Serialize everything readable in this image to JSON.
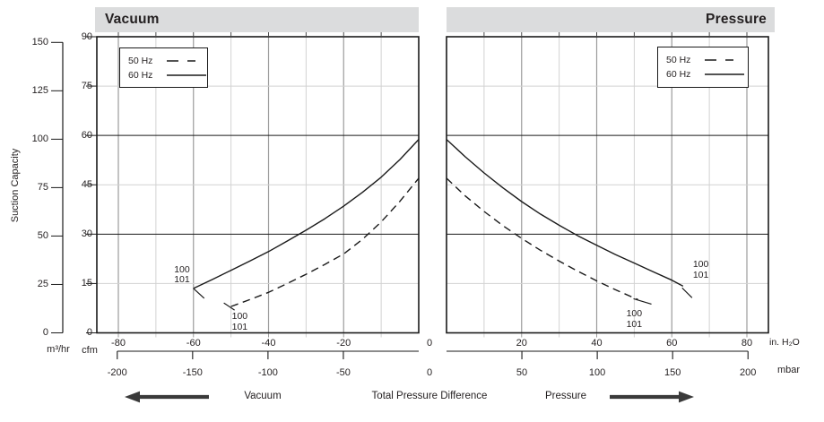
{
  "chart_data": {
    "type": "line",
    "title_left": "Vacuum",
    "title_right": "Pressure",
    "ylabel": "Suction Capacity",
    "y_axis_primary": {
      "unit": "m³/hr",
      "ticks": [
        0,
        25,
        50,
        75,
        100,
        125,
        150
      ],
      "max": 150
    },
    "y_axis_secondary": {
      "unit": "cfm",
      "ticks": [
        0,
        15,
        30,
        45,
        60,
        75,
        90
      ],
      "max": 90
    },
    "x_axis_inh2o": {
      "unit": "in. H₂O",
      "left_ticks": [
        -80,
        -60,
        -40,
        -20
      ],
      "right_ticks": [
        20,
        40,
        60,
        80
      ],
      "zero_label": "0",
      "grid_step": 10,
      "left_range": [
        -86,
        0
      ],
      "right_range": [
        0,
        86
      ]
    },
    "x_axis_mbar": {
      "unit": "mbar",
      "left_ticks": [
        -200,
        -150,
        -100,
        -50
      ],
      "right_ticks": [
        50,
        100,
        150,
        200
      ],
      "zero_label": "0",
      "inh2o_per_mbar": 0.40147
    },
    "legend": [
      {
        "label": "50 Hz",
        "style": "dashed"
      },
      {
        "label": "60 Hz",
        "style": "solid"
      }
    ],
    "panels": [
      {
        "name": "vacuum",
        "series": [
          {
            "name": "60 Hz",
            "style": "solid",
            "points_inh2o_cfm": [
              [
                -60,
                13.5
              ],
              [
                -55,
                16.2
              ],
              [
                -50,
                19
              ],
              [
                -45,
                21.8
              ],
              [
                -40,
                24.7
              ],
              [
                -35,
                27.9
              ],
              [
                -30,
                31.2
              ],
              [
                -25,
                34.7
              ],
              [
                -20,
                38.5
              ],
              [
                -15,
                42.7
              ],
              [
                -10,
                47.3
              ],
              [
                -5,
                52.7
              ],
              [
                0,
                58.8
              ]
            ]
          },
          {
            "name": "50 Hz",
            "style": "dashed",
            "points_inh2o_cfm": [
              [
                -50,
                8
              ],
              [
                -45,
                10.1
              ],
              [
                -40,
                12.3
              ],
              [
                -35,
                15
              ],
              [
                -30,
                17.8
              ],
              [
                -25,
                20.8
              ],
              [
                -20,
                24
              ],
              [
                -15,
                28.4
              ],
              [
                -10,
                33.7
              ],
              [
                -5,
                40
              ],
              [
                0,
                47
              ]
            ]
          }
        ]
      },
      {
        "name": "pressure",
        "series": [
          {
            "name": "60 Hz",
            "style": "solid",
            "points_inh2o_cfm": [
              [
                0,
                58.8
              ],
              [
                5,
                53.5
              ],
              [
                10,
                48.6
              ],
              [
                15,
                44.1
              ],
              [
                20,
                39.9
              ],
              [
                25,
                36.1
              ],
              [
                30,
                32.7
              ],
              [
                35,
                29.5
              ],
              [
                40,
                26.6
              ],
              [
                45,
                23.8
              ],
              [
                50,
                21.2
              ],
              [
                55,
                18.6
              ],
              [
                60,
                16
              ],
              [
                63,
                14.2
              ]
            ]
          },
          {
            "name": "50 Hz",
            "style": "dashed",
            "points_inh2o_cfm": [
              [
                0,
                47
              ],
              [
                5,
                41.6
              ],
              [
                10,
                36.9
              ],
              [
                15,
                32.6
              ],
              [
                20,
                28.7
              ],
              [
                25,
                25.1
              ],
              [
                30,
                21.8
              ],
              [
                35,
                18.7
              ],
              [
                40,
                15.8
              ],
              [
                45,
                13.1
              ],
              [
                50,
                10.6
              ],
              [
                51,
                10.1
              ]
            ]
          }
        ]
      }
    ],
    "curve_labels": {
      "lines": [
        "100",
        "101"
      ]
    },
    "bottom_labels": {
      "vacuum": "Vacuum",
      "center": "Total Pressure Difference",
      "pressure": "Pressure"
    },
    "colors": {
      "text": "#231f20",
      "title_bar_bg": "#dbdcdd",
      "frame": "#1a1a1a",
      "grid_major": "#9b9b9b",
      "grid_minor": "#d2d2d2",
      "grid_dark_h": "#1a1a1a",
      "curve": "#1a1a1a",
      "arrow": "#3a3a3a"
    }
  }
}
